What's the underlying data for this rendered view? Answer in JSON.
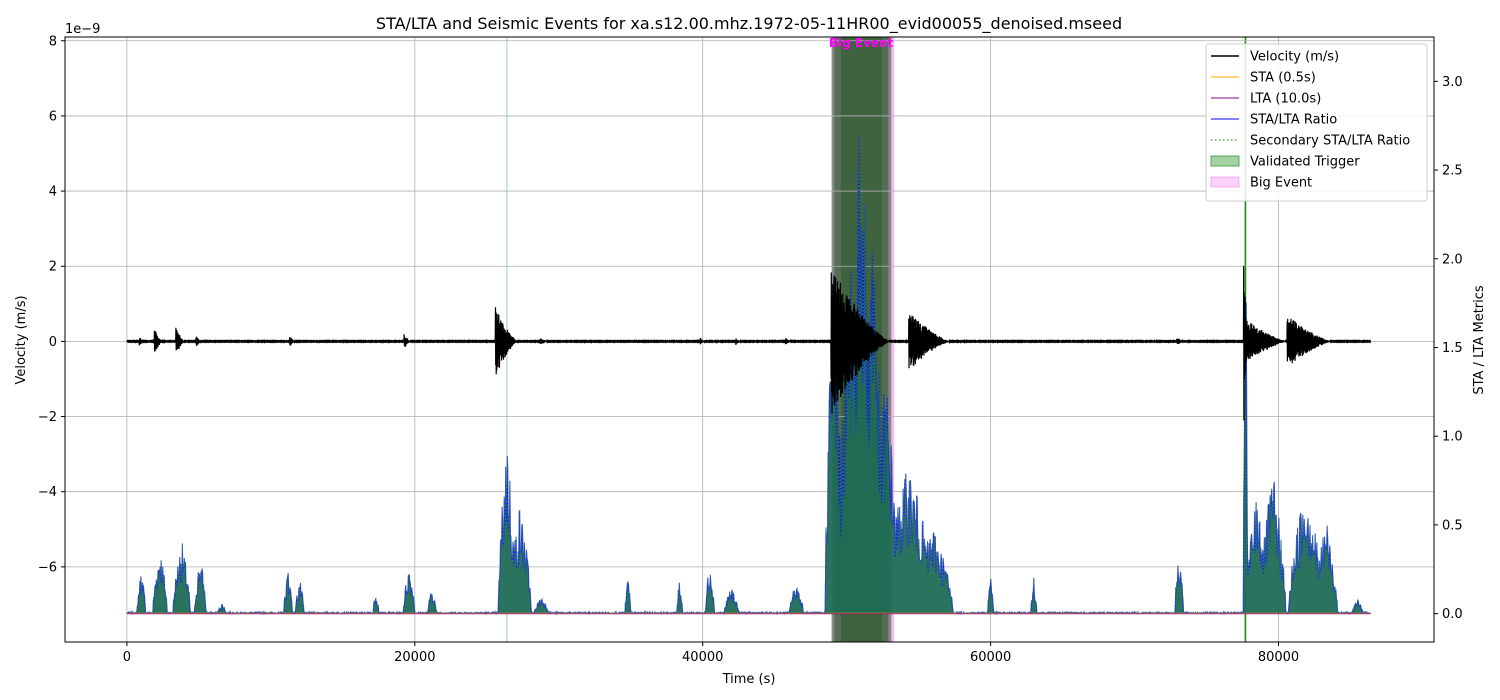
{
  "chart_data": {
    "type": "line",
    "title": "STA/LTA and Seismic Events for xa.s12.00.mhz.1972-05-11HR00_evid00055_denoised.mseed",
    "xlabel": "Time (s)",
    "ylabel": "Velocity (m/s)",
    "ylabel_right": "STA / LTA Metrics",
    "y_exponent": "1e−9",
    "xlim": [
      -4300,
      90800
    ],
    "ylim": [
      -8.0,
      8.1
    ],
    "ylim_right": [
      -0.16,
      3.25
    ],
    "x_ticks": [
      0,
      20000,
      40000,
      60000,
      80000
    ],
    "x_tick_labels": [
      "0",
      "20000",
      "40000",
      "60000",
      "80000"
    ],
    "y_ticks": [
      -6,
      -4,
      -2,
      0,
      2,
      4,
      6,
      8
    ],
    "y_tick_labels": [
      "−6",
      "−4",
      "−2",
      "0",
      "2",
      "4",
      "6",
      "8"
    ],
    "y_right_ticks": [
      0.0,
      0.5,
      1.0,
      1.5,
      2.0,
      2.5,
      3.0
    ],
    "y_right_tick_labels": [
      "0.0",
      "0.5",
      "1.0",
      "1.5",
      "2.0",
      "2.5",
      "3.0"
    ],
    "grid": true,
    "legend_position": "top-right",
    "legend": [
      {
        "label": "Velocity (m/s)",
        "color": "#000000",
        "style": "solid"
      },
      {
        "label": "STA (0.5s)",
        "color": "#ffa500",
        "style": "solid"
      },
      {
        "label": "LTA (10.0s)",
        "color": "#800080",
        "style": "solid"
      },
      {
        "label": "STA/LTA Ratio",
        "color": "#0000ff",
        "style": "solid"
      },
      {
        "label": "Secondary STA/LTA Ratio",
        "color": "#008000",
        "style": "dotted"
      },
      {
        "label": "Validated Trigger",
        "color": "#008000",
        "style": "patch"
      },
      {
        "label": "Big Event",
        "color": "#ee82ee",
        "style": "patch"
      }
    ],
    "annotations": [
      {
        "text": "Big Event",
        "x": 51000,
        "color": "#ff00ff"
      }
    ],
    "big_event_span": [
      49000,
      53300
    ],
    "validated_trigger_lines": [
      26400,
      77700
    ],
    "validated_trigger_spans": [
      [
        48950,
        52450
      ],
      [
        49150,
        52900
      ],
      [
        49600,
        53100
      ]
    ],
    "velocity_bursts": [
      {
        "center": 1000,
        "amp": 0.15,
        "width": 300
      },
      {
        "center": 2200,
        "amp": 0.35,
        "width": 600
      },
      {
        "center": 3700,
        "amp": 0.4,
        "width": 600
      },
      {
        "center": 5000,
        "amp": 0.15,
        "width": 400
      },
      {
        "center": 11500,
        "amp": 0.15,
        "width": 400
      },
      {
        "center": 19500,
        "amp": 0.2,
        "width": 500
      },
      {
        "center": 26400,
        "amp": 0.95,
        "width": 1600
      },
      {
        "center": 29000,
        "amp": 0.1,
        "width": 600
      },
      {
        "center": 40000,
        "amp": 0.1,
        "width": 400
      },
      {
        "center": 42500,
        "amp": 0.1,
        "width": 400
      },
      {
        "center": 46000,
        "amp": 0.1,
        "width": 500
      },
      {
        "center": 51000,
        "amp": 2.0,
        "width": 4200
      },
      {
        "center": 55800,
        "amp": 0.8,
        "width": 3000
      },
      {
        "center": 73200,
        "amp": 0.12,
        "width": 500
      },
      {
        "center": 77700,
        "amp": 2.5,
        "width": 250
      },
      {
        "center": 79200,
        "amp": 0.6,
        "width": 3000
      },
      {
        "center": 82200,
        "amp": 0.7,
        "width": 3200
      }
    ],
    "sta_lta_peaks": [
      {
        "center": 1000,
        "height": 0.25,
        "width": 300
      },
      {
        "center": 2300,
        "height": 0.38,
        "width": 500
      },
      {
        "center": 3800,
        "height": 0.42,
        "width": 600
      },
      {
        "center": 5100,
        "height": 0.33,
        "width": 400
      },
      {
        "center": 6600,
        "height": 0.06,
        "width": 300
      },
      {
        "center": 11200,
        "height": 0.26,
        "width": 300
      },
      {
        "center": 12000,
        "height": 0.2,
        "width": 300
      },
      {
        "center": 17300,
        "height": 0.14,
        "width": 200
      },
      {
        "center": 19600,
        "height": 0.28,
        "width": 400
      },
      {
        "center": 21200,
        "height": 0.15,
        "width": 300
      },
      {
        "center": 26400,
        "height": 1.02,
        "width": 600
      },
      {
        "center": 27300,
        "height": 0.62,
        "width": 800
      },
      {
        "center": 28800,
        "height": 0.1,
        "width": 500
      },
      {
        "center": 34800,
        "height": 0.21,
        "width": 200
      },
      {
        "center": 38400,
        "height": 0.2,
        "width": 200
      },
      {
        "center": 40500,
        "height": 0.32,
        "width": 300
      },
      {
        "center": 42000,
        "height": 0.15,
        "width": 500
      },
      {
        "center": 46500,
        "height": 0.18,
        "width": 500
      },
      {
        "center": 49100,
        "height": 2.1,
        "width": 600
      },
      {
        "center": 50300,
        "height": 2.2,
        "width": 900
      },
      {
        "center": 51000,
        "height": 3.1,
        "width": 700
      },
      {
        "center": 51800,
        "height": 2.5,
        "width": 700
      },
      {
        "center": 52700,
        "height": 1.4,
        "width": 900
      },
      {
        "center": 54300,
        "height": 0.85,
        "width": 1800
      },
      {
        "center": 56000,
        "height": 0.5,
        "width": 1400
      },
      {
        "center": 60000,
        "height": 0.26,
        "width": 200
      },
      {
        "center": 63000,
        "height": 0.22,
        "width": 200
      },
      {
        "center": 73100,
        "height": 0.38,
        "width": 300
      },
      {
        "center": 77700,
        "height": 2.4,
        "width": 150
      },
      {
        "center": 78500,
        "height": 0.7,
        "width": 800
      },
      {
        "center": 79600,
        "height": 0.8,
        "width": 900
      },
      {
        "center": 81900,
        "height": 0.75,
        "width": 1200
      },
      {
        "center": 83300,
        "height": 0.55,
        "width": 800
      },
      {
        "center": 85500,
        "height": 0.08,
        "width": 400
      }
    ],
    "signal_range": [
      0,
      86400
    ]
  }
}
